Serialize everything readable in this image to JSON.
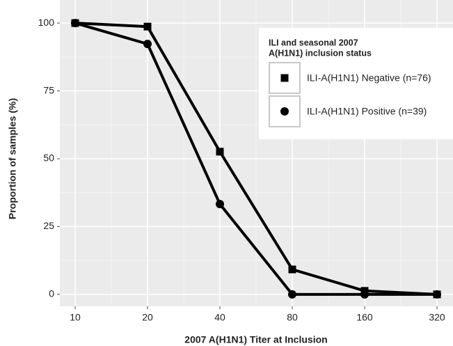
{
  "chart_data": {
    "type": "line",
    "x_label": "2007 A(H1N1) Titer at Inclusion",
    "y_label": "Proportion of samples (%)",
    "categories": [
      "10",
      "20",
      "40",
      "80",
      "160",
      "320"
    ],
    "series": [
      {
        "name": "ILI-A(H1N1) Negative (n=76)",
        "color": "#000000",
        "marker": "square",
        "values": [
          100,
          98.7,
          52.6,
          9.2,
          1.3,
          0
        ]
      },
      {
        "name": "ILI-A(H1N1) Positive (n=39)",
        "color": "#000000",
        "marker": "circle",
        "values": [
          100,
          92.3,
          33.3,
          0,
          0,
          0
        ]
      }
    ],
    "legend_title": [
      "ILI and seasonal 2007",
      "A(H1N1) inclusion status"
    ],
    "ylim": [
      -4.4,
      108.5
    ],
    "yticks": [
      0,
      25,
      50,
      75,
      100
    ],
    "grid": true
  }
}
